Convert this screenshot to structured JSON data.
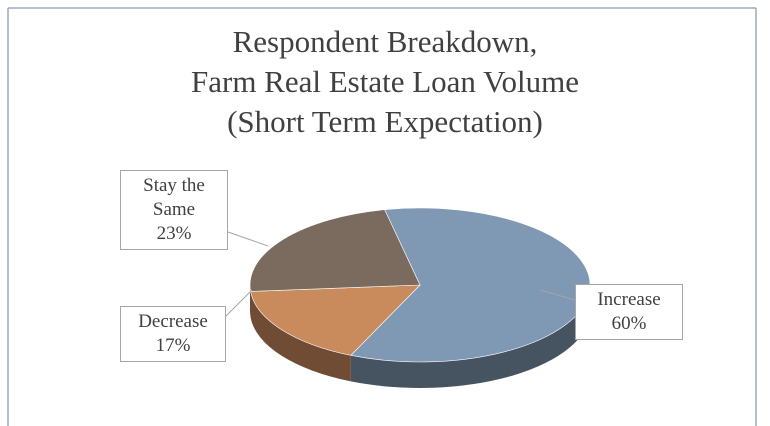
{
  "chart_data": {
    "type": "pie3d",
    "title": [
      "Respondent Breakdown,",
      "Farm Real Estate Loan Volume",
      "(Short Term Expectation)"
    ],
    "categories": [
      "Increase",
      "Decrease",
      "Stay the Same"
    ],
    "values": [
      60,
      17,
      23
    ],
    "value_labels": [
      "60%",
      "17%",
      "23%"
    ],
    "colors": [
      "#7f98b3",
      "#c98a5c",
      "#7b6b5f"
    ]
  }
}
